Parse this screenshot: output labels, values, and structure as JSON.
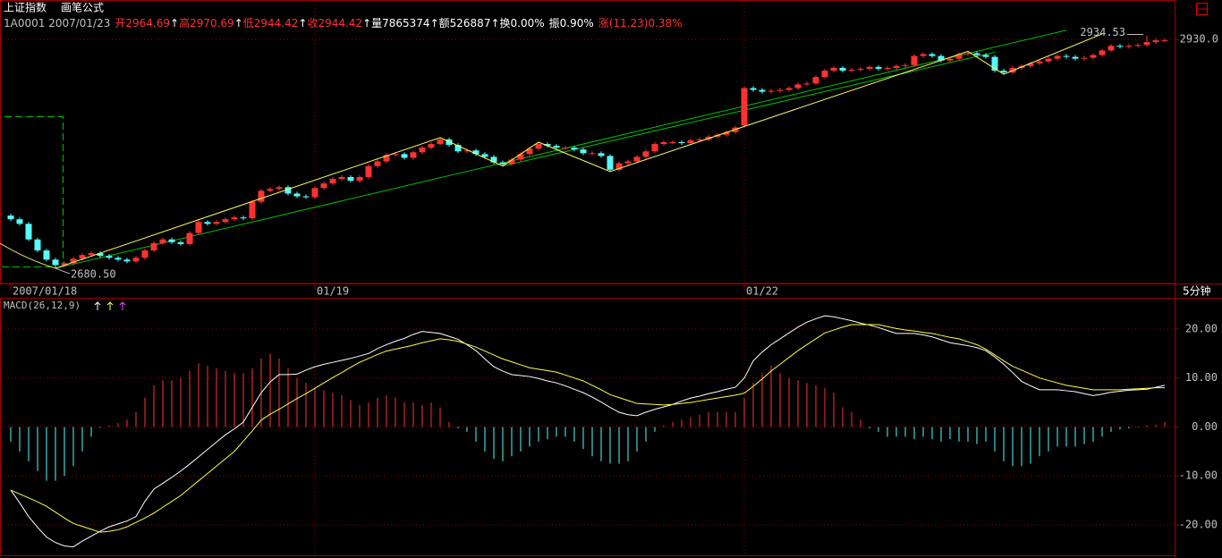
{
  "header": {
    "name": "上证指数",
    "formula": "画笔公式",
    "info": [
      {
        "text": "1A0001 2007/01/23",
        "color": "#c0c0c0"
      },
      {
        "text": "开2964.69",
        "color": "#ff3232"
      },
      {
        "text": "↑",
        "color": "#ffffff"
      },
      {
        "text": "高2970.69",
        "color": "#ff3232"
      },
      {
        "text": "↑",
        "color": "#ffffff"
      },
      {
        "text": "低2944.42",
        "color": "#ff3232"
      },
      {
        "text": "↑",
        "color": "#ffffff"
      },
      {
        "text": "收2944.42",
        "color": "#ff3232"
      },
      {
        "text": "↑",
        "color": "#ffffff"
      },
      {
        "text": "量7865374",
        "color": "#ffffff"
      },
      {
        "text": "↑",
        "color": "#ffffff"
      },
      {
        "text": "额526887",
        "color": "#ffffff"
      },
      {
        "text": "↑",
        "color": "#ffffff"
      },
      {
        "text": "换0.00%",
        "color": "#ffffff"
      },
      {
        "text": "振0.90%",
        "color": "#ffffff"
      },
      {
        "text": "涨(11.23)0.38%",
        "color": "#ff3232"
      }
    ]
  },
  "chart_data": [
    {
      "type": "candlestick",
      "up_color": "#ff3232",
      "down_color": "#54fcfc",
      "xlim": [
        -1.1,
        130.1
      ],
      "ylim": [
        2664,
        2972
      ],
      "yticks": [
        {
          "value": 2930,
          "label": "2930.0"
        }
      ],
      "grid": true,
      "period": "5分钟",
      "date_labels": [
        {
          "index": 0,
          "label": "2007/01/18"
        },
        {
          "index": 34,
          "label": "01/19"
        },
        {
          "index": 82,
          "label": "01/22"
        }
      ],
      "open": [
        2738,
        2734,
        2729,
        2712,
        2700,
        2690,
        2684,
        2686,
        2691,
        2695,
        2697,
        2694,
        2692,
        2690,
        2688,
        2692,
        2700,
        2708,
        2712,
        2709,
        2707,
        2719,
        2731,
        2729,
        2731,
        2734,
        2736,
        2735,
        2753,
        2765,
        2767,
        2769,
        2762,
        2759,
        2758,
        2768,
        2773,
        2778,
        2780,
        2776,
        2780,
        2792,
        2797,
        2804,
        2805,
        2801,
        2807,
        2812,
        2816,
        2821,
        2815,
        2808,
        2809,
        2805,
        2802,
        2796,
        2794,
        2799,
        2805,
        2811,
        2816,
        2814,
        2812,
        2812,
        2810,
        2806,
        2806,
        2803,
        2788,
        2795,
        2797,
        2802,
        2808,
        2816,
        2818,
        2818,
        2817,
        2820,
        2821,
        2824,
        2826,
        2829,
        2836,
        2877,
        2875,
        2873,
        2874,
        2875,
        2877,
        2881,
        2882,
        2889,
        2896,
        2899,
        2896,
        2897,
        2898,
        2900,
        2898,
        2899,
        2901,
        2902,
        2912,
        2914,
        2912,
        2907,
        2909,
        2914,
        2915,
        2913,
        2911,
        2896,
        2894,
        2899,
        2901,
        2904,
        2906,
        2909,
        2912,
        2911,
        2909,
        2910,
        2913,
        2918,
        2923,
        2922,
        2923,
        2924,
        2927,
        2929
      ],
      "high": [
        2740,
        2736,
        2731,
        2714,
        2702,
        2692,
        2688,
        2693,
        2697,
        2699,
        2699,
        2696,
        2694,
        2692,
        2694,
        2702,
        2710,
        2714,
        2714,
        2711,
        2721,
        2733,
        2733,
        2733,
        2736,
        2738,
        2738,
        2755,
        2767,
        2769,
        2771,
        2771,
        2764,
        2761,
        2770,
        2775,
        2780,
        2782,
        2782,
        2782,
        2794,
        2799,
        2806,
        2807,
        2807,
        2809,
        2814,
        2818,
        2823,
        2823,
        2817,
        2811,
        2811,
        2807,
        2804,
        2798,
        2801,
        2807,
        2813,
        2818,
        2818,
        2816,
        2814,
        2814,
        2812,
        2808,
        2808,
        2805,
        2797,
        2799,
        2804,
        2810,
        2818,
        2820,
        2820,
        2820,
        2822,
        2823,
        2826,
        2828,
        2831,
        2836,
        2879,
        2879,
        2877,
        2876,
        2877,
        2879,
        2883,
        2884,
        2891,
        2898,
        2901,
        2901,
        2899,
        2900,
        2902,
        2902,
        2901,
        2903,
        2904,
        2914,
        2916,
        2916,
        2914,
        2911,
        2916,
        2917,
        2917,
        2915,
        2913,
        2898,
        2901,
        2903,
        2906,
        2908,
        2911,
        2914,
        2914,
        2913,
        2912,
        2915,
        2920,
        2925,
        2925,
        2925,
        2926,
        2934.53,
        2931,
        2931
      ],
      "low": [
        2732,
        2727,
        2710,
        2698,
        2688,
        2680.5,
        2682,
        2684,
        2689,
        2693,
        2692,
        2690,
        2688,
        2686,
        2686,
        2690,
        2698,
        2706,
        2707,
        2705,
        2705,
        2717,
        2727,
        2727,
        2729,
        2732,
        2733,
        2733,
        2751,
        2763,
        2765,
        2760,
        2757,
        2756,
        2756,
        2766,
        2771,
        2776,
        2774,
        2774,
        2778,
        2790,
        2795,
        2802,
        2799,
        2799,
        2805,
        2810,
        2814,
        2813,
        2806,
        2806,
        2803,
        2800,
        2794,
        2792,
        2792,
        2797,
        2803,
        2809,
        2812,
        2810,
        2810,
        2808,
        2804,
        2804,
        2801,
        2786,
        2786,
        2793,
        2795,
        2800,
        2806,
        2814,
        2816,
        2815,
        2815,
        2818,
        2819,
        2822,
        2824,
        2827,
        2834,
        2873,
        2871,
        2871,
        2872,
        2873,
        2875,
        2879,
        2880,
        2887,
        2894,
        2894,
        2894,
        2895,
        2896,
        2896,
        2896,
        2897,
        2899,
        2900,
        2910,
        2910,
        2905,
        2905,
        2907,
        2912,
        2911,
        2909,
        2894,
        2892,
        2892,
        2897,
        2899,
        2902,
        2904,
        2907,
        2909,
        2907,
        2907,
        2908,
        2911,
        2916,
        2920,
        2920,
        2921,
        2922,
        2925,
        2927
      ],
      "close": [
        2734,
        2729,
        2712,
        2700,
        2690,
        2684,
        2686,
        2691,
        2695,
        2697,
        2694,
        2692,
        2690,
        2688,
        2692,
        2700,
        2708,
        2712,
        2709,
        2707,
        2719,
        2731,
        2729,
        2731,
        2734,
        2736,
        2735,
        2753,
        2765,
        2767,
        2769,
        2762,
        2759,
        2758,
        2768,
        2773,
        2778,
        2780,
        2776,
        2780,
        2792,
        2797,
        2804,
        2805,
        2801,
        2807,
        2812,
        2816,
        2821,
        2815,
        2808,
        2809,
        2805,
        2802,
        2796,
        2794,
        2799,
        2805,
        2811,
        2816,
        2814,
        2812,
        2812,
        2810,
        2806,
        2806,
        2803,
        2788,
        2795,
        2797,
        2802,
        2808,
        2816,
        2818,
        2818,
        2817,
        2820,
        2821,
        2824,
        2826,
        2829,
        2834,
        2877,
        2875,
        2873,
        2874,
        2875,
        2877,
        2881,
        2882,
        2889,
        2896,
        2899,
        2896,
        2897,
        2898,
        2900,
        2898,
        2899,
        2901,
        2902,
        2912,
        2914,
        2912,
        2907,
        2909,
        2914,
        2915,
        2913,
        2911,
        2896,
        2894,
        2899,
        2901,
        2904,
        2906,
        2909,
        2912,
        2911,
        2909,
        2910,
        2913,
        2918,
        2923,
        2922,
        2923,
        2924,
        2927,
        2929,
        2929
      ],
      "zigzag": {
        "color": "#ffff60",
        "index": [
          5,
          48,
          55,
          59,
          67,
          107,
          111,
          122
        ],
        "price": [
          2680.5,
          2823,
          2792,
          2818,
          2786,
          2917,
          2892,
          2936
        ]
      },
      "trend_lines": [
        {
          "color": "#00c000",
          "index": [
            5,
            118
          ],
          "price": [
            2680.5,
            2940
          ]
        },
        {
          "color": "#00c000",
          "index": [
            55,
            110
          ],
          "price": [
            2792,
            2916
          ]
        }
      ],
      "annotations": [
        {
          "index": 5,
          "value": 2680.5,
          "label": "2680.50"
        },
        {
          "index": 127,
          "value": 2934.53,
          "label": "2934.53"
        }
      ]
    },
    {
      "type": "macd",
      "title": "MACD(26,12,9)",
      "xlim": [
        -1.1,
        130.1
      ],
      "ylim": [
        -26.4,
        26.2
      ],
      "yticks": [
        {
          "value": 20,
          "label": "20.00"
        },
        {
          "value": 10,
          "label": "10.00"
        },
        {
          "value": 0,
          "label": "0.00"
        },
        {
          "value": -10,
          "label": "-10.00"
        },
        {
          "value": -20,
          "label": "-20.00"
        }
      ],
      "grid": true,
      "series": [
        {
          "color": "#ffffff",
          "values": [
            -12.9,
            -15.5,
            -18.3,
            -20.5,
            -22.5,
            -23.6,
            -24.3,
            -24.5,
            -23.3,
            -22.3,
            -21.3,
            -20.4,
            -19.8,
            -19.2,
            -18.3,
            -15.2,
            -12.7,
            -11.5,
            -10.3,
            -9,
            -7.6,
            -6.1,
            -4.6,
            -3.1,
            -1.6,
            -0.4,
            1,
            4,
            7,
            9.2,
            10.7,
            10.7,
            10.8,
            11.6,
            12.3,
            12.8,
            13.2,
            13.6,
            14,
            14.5,
            15,
            16,
            16.8,
            17.5,
            18.1,
            18.9,
            19.5,
            19.3,
            19.1,
            18.5,
            17.9,
            16.8,
            15.6,
            13.9,
            12.3,
            11.4,
            10.7,
            10.5,
            10.3,
            9.9,
            9.4,
            9,
            8.4,
            7.7,
            7,
            6.1,
            5.1,
            4,
            3,
            2.5,
            2.3,
            3,
            3.6,
            4.1,
            4.6,
            5.3,
            5.9,
            6.3,
            6.8,
            7.2,
            7.7,
            8.1,
            10,
            13.5,
            15.3,
            16.8,
            18,
            19.2,
            20.4,
            21.4,
            22.1,
            22.7,
            22.5,
            22.1,
            21.7,
            21.2,
            20.8,
            20.3,
            19.7,
            19.1,
            19.1,
            19.1,
            18.8,
            18.4,
            17.8,
            17.2,
            16.9,
            16.6,
            16.2,
            15.6,
            14.3,
            12.8,
            11.1,
            9.3,
            8.4,
            7.6,
            7.6,
            7.6,
            7.4,
            7.2,
            6.8,
            6.4,
            6.7,
            7.1,
            7.3,
            7.5,
            7.6,
            7.7,
            8.1,
            8.5
          ]
        },
        {
          "color": "#ffff40",
          "values": [
            -12.9,
            -13.7,
            -14.5,
            -15.3,
            -16.2,
            -17.4,
            -18.6,
            -19.7,
            -20.3,
            -20.9,
            -21.5,
            -21.3,
            -21,
            -20.4,
            -19.5,
            -18.6,
            -17.6,
            -16.4,
            -15.2,
            -14,
            -12.5,
            -11,
            -9.5,
            -8,
            -6.5,
            -5,
            -2.9,
            -0.8,
            1.4,
            2.6,
            3.6,
            4.7,
            5.8,
            6.8,
            7.9,
            9,
            10.1,
            11.1,
            12.2,
            13.2,
            14,
            14.8,
            15.5,
            15.9,
            16.3,
            16.7,
            17.2,
            17.6,
            18,
            17.8,
            17.5,
            16.9,
            16.3,
            15.5,
            14.7,
            13.9,
            13.3,
            12.7,
            12.1,
            11.8,
            11.5,
            11.2,
            10.6,
            10,
            9.4,
            8.5,
            7.6,
            6.6,
            6,
            5.4,
            4.8,
            4.7,
            4.6,
            4.5,
            4.6,
            4.8,
            5,
            5.3,
            5.6,
            5.9,
            6.2,
            6.5,
            6.9,
            8.3,
            9.8,
            11.4,
            12.8,
            14.2,
            15.6,
            16.8,
            18,
            19.2,
            19.8,
            20.4,
            20.9,
            20.9,
            20.9,
            20.9,
            20.5,
            20.1,
            19.8,
            19.6,
            19.3,
            19.1,
            18.7,
            18.3,
            18,
            17.4,
            16.8,
            15.9,
            14.7,
            13.5,
            12.4,
            11.6,
            10.8,
            10,
            9.5,
            9,
            8.5,
            8.2,
            7.9,
            7.6,
            7.6,
            7.6,
            7.6,
            7.7,
            7.8,
            7.9,
            8,
            8
          ]
        }
      ],
      "histogram": {
        "up_color": "#ff3232",
        "down_color": "#54fcfc",
        "values": [
          -3,
          -5,
          -7,
          -9,
          -11,
          -11,
          -10,
          -8,
          -5,
          -2,
          -0.2,
          0.3,
          0.8,
          1.5,
          3,
          6,
          8.5,
          9.5,
          9.5,
          10,
          11.5,
          13,
          12.5,
          12,
          11.5,
          11,
          11,
          12,
          14,
          15,
          14,
          12,
          10,
          9,
          8,
          7.5,
          7,
          6.5,
          5.5,
          4.5,
          5,
          6,
          6.5,
          6,
          5,
          5,
          4.5,
          5,
          4,
          1,
          -0.3,
          -1,
          -3,
          -5,
          -6.5,
          -7,
          -6,
          -5,
          -4,
          -3,
          -2.5,
          -2,
          -2,
          -3,
          -4.5,
          -6,
          -7,
          -7.5,
          -7.5,
          -7,
          -5,
          -3,
          -1,
          0.3,
          1,
          1.5,
          2,
          2.5,
          3,
          3,
          3,
          3,
          6,
          9,
          11,
          12.5,
          11,
          10,
          9.5,
          9,
          8.5,
          8,
          7,
          4,
          3,
          1.5,
          -0.3,
          -1,
          -2,
          -2,
          -2,
          -2.5,
          -2,
          -2.5,
          -3,
          -2.5,
          -3,
          -3,
          -3.5,
          -3,
          -5,
          -7,
          -8,
          -8,
          -7.5,
          -6,
          -5,
          -4,
          -4,
          -4,
          -3.5,
          -3,
          -2,
          -1,
          -0.5,
          -0.3,
          -0.1,
          0.3,
          0.5,
          1
        ]
      }
    }
  ]
}
